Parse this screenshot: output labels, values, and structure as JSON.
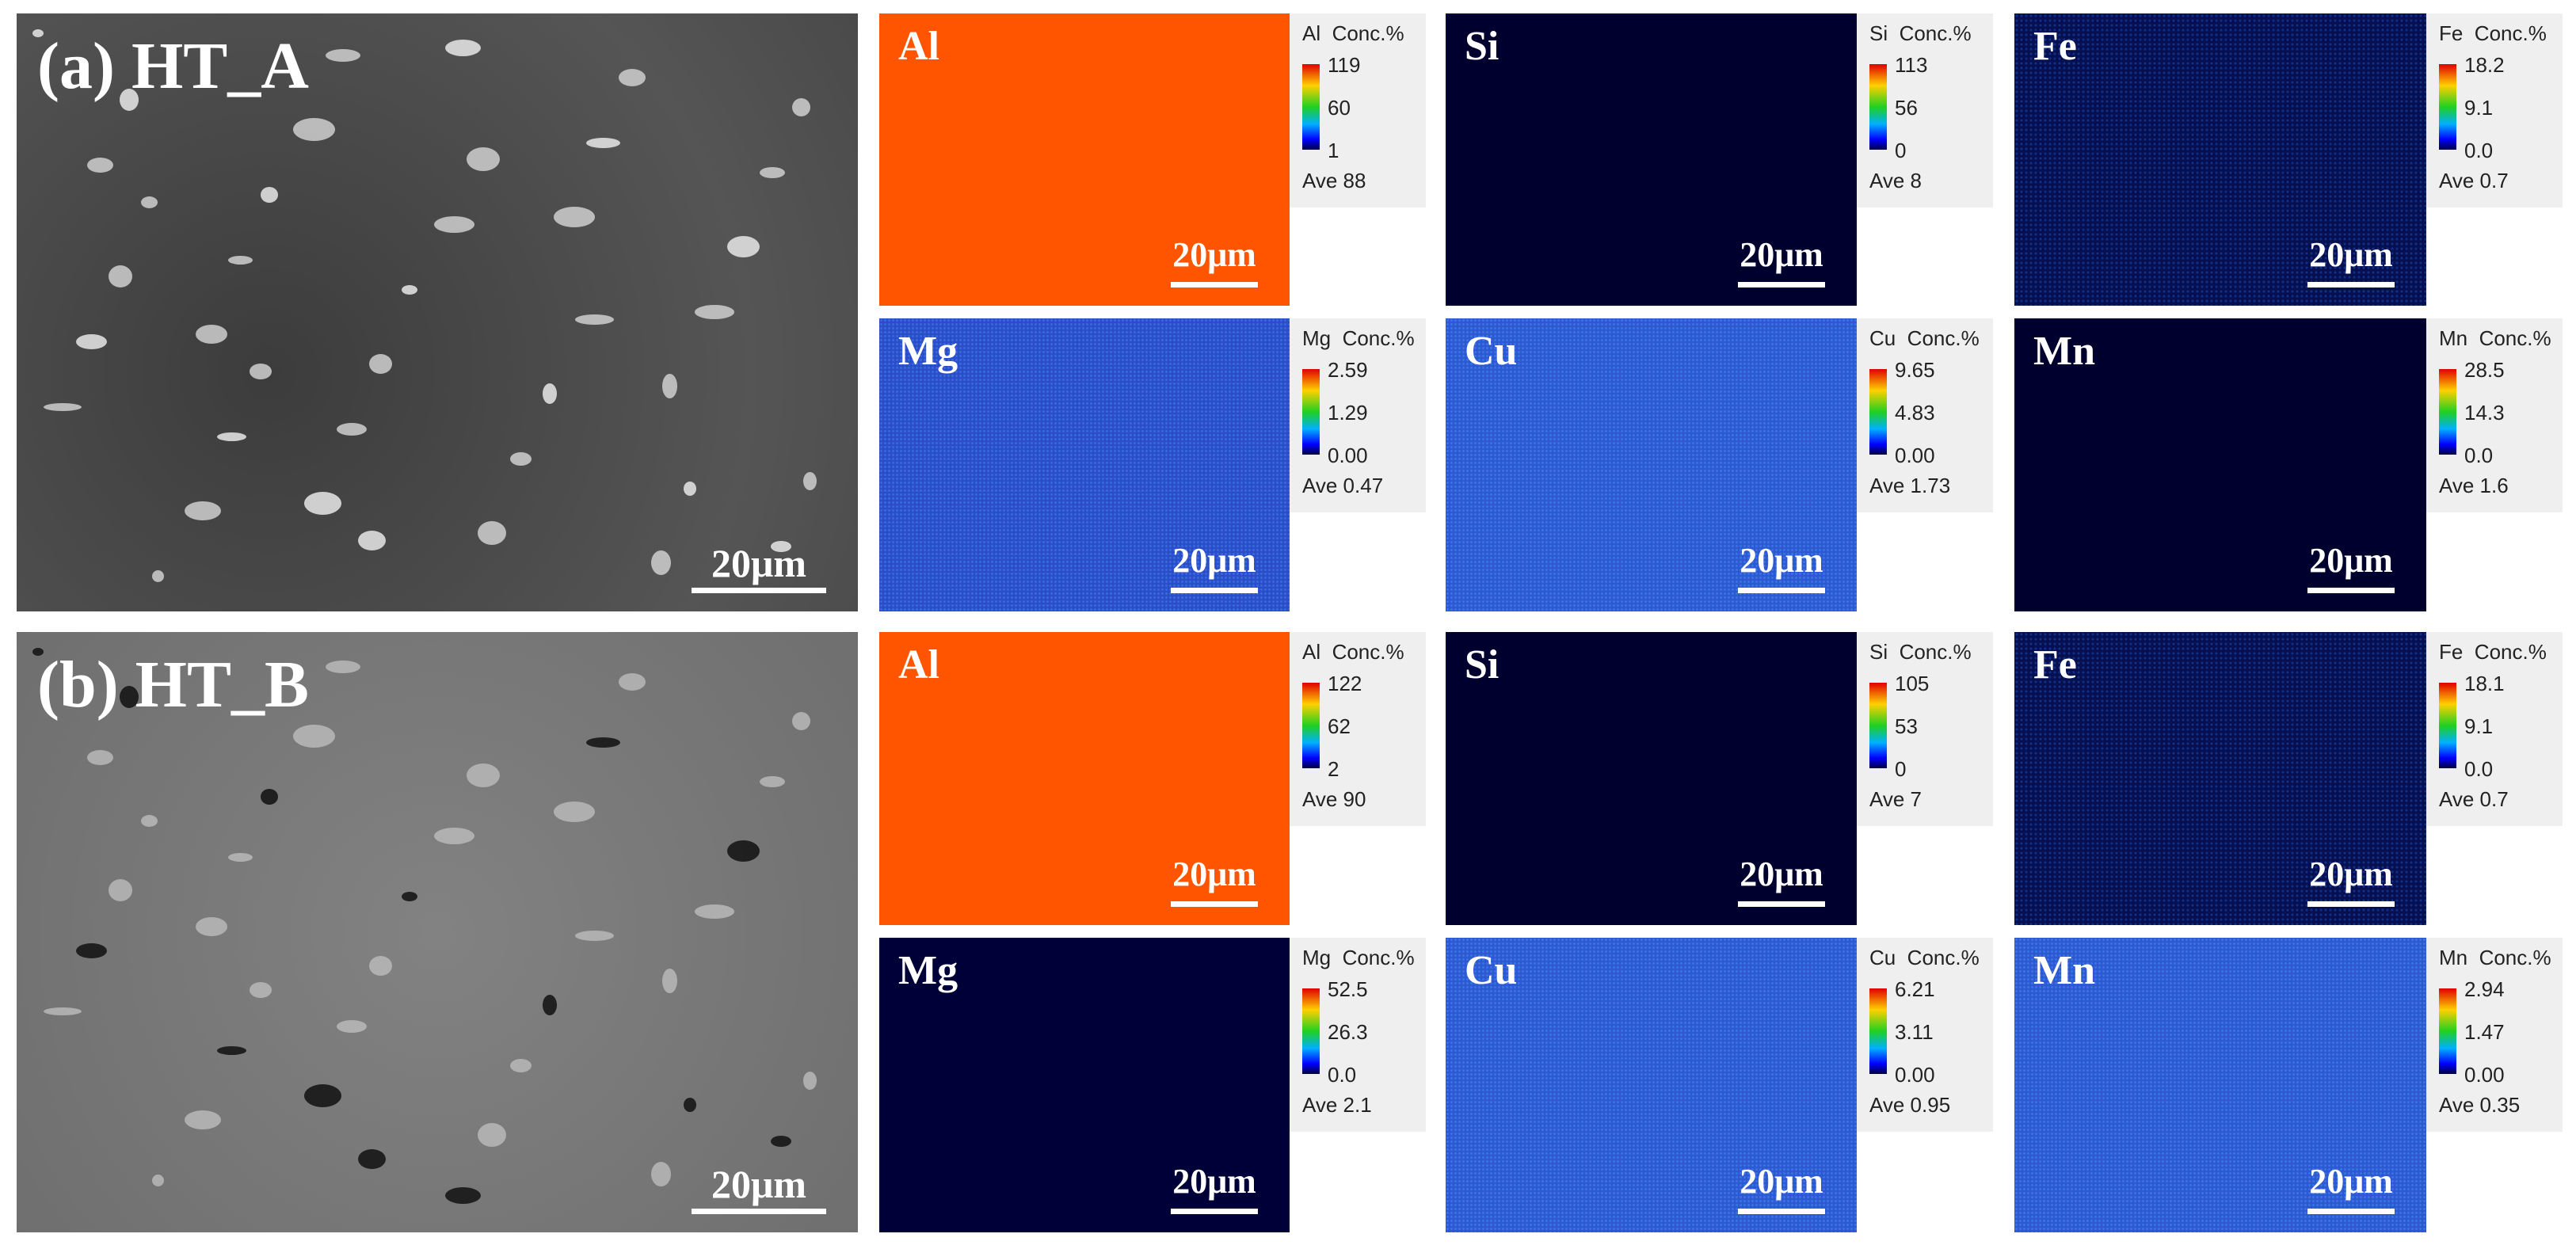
{
  "panels": [
    {
      "label": "(a) HT_A",
      "scale_bar": "20μm",
      "maps": [
        {
          "element": "Al",
          "legend_title": "Al  Conc.%",
          "max": "119",
          "mid": "60",
          "min": "1",
          "average": "Ave 88",
          "scale_bar": "20μm"
        },
        {
          "element": "Si",
          "legend_title": "Si  Conc.%",
          "max": "113",
          "mid": "56",
          "min": "0",
          "average": "Ave 8",
          "scale_bar": "20μm"
        },
        {
          "element": "Fe",
          "legend_title": "Fe  Conc.%",
          "max": "18.2",
          "mid": "9.1",
          "min": "0.0",
          "average": "Ave 0.7",
          "scale_bar": "20μm"
        },
        {
          "element": "Mg",
          "legend_title": "Mg  Conc.%",
          "max": "2.59",
          "mid": "1.29",
          "min": "0.00",
          "average": "Ave 0.47",
          "scale_bar": "20μm"
        },
        {
          "element": "Cu",
          "legend_title": "Cu  Conc.%",
          "max": "9.65",
          "mid": "4.83",
          "min": "0.00",
          "average": "Ave 1.73",
          "scale_bar": "20μm"
        },
        {
          "element": "Mn",
          "legend_title": "Mn  Conc.%",
          "max": "28.5",
          "mid": "14.3",
          "min": "0.0",
          "average": "Ave 1.6",
          "scale_bar": "20μm"
        }
      ]
    },
    {
      "label": "(b) HT_B",
      "scale_bar": "20μm",
      "maps": [
        {
          "element": "Al",
          "legend_title": "Al  Conc.%",
          "max": "122",
          "mid": "62",
          "min": "2",
          "average": "Ave 90",
          "scale_bar": "20μm"
        },
        {
          "element": "Si",
          "legend_title": "Si  Conc.%",
          "max": "105",
          "mid": "53",
          "min": "0",
          "average": "Ave 7",
          "scale_bar": "20μm"
        },
        {
          "element": "Fe",
          "legend_title": "Fe  Conc.%",
          "max": "18.1",
          "mid": "9.1",
          "min": "0.0",
          "average": "Ave 0.7",
          "scale_bar": "20μm"
        },
        {
          "element": "Mg",
          "legend_title": "Mg  Conc.%",
          "max": "52.5",
          "mid": "26.3",
          "min": "0.0",
          "average": "Ave 2.1",
          "scale_bar": "20μm"
        },
        {
          "element": "Cu",
          "legend_title": "Cu  Conc.%",
          "max": "6.21",
          "mid": "3.11",
          "min": "0.00",
          "average": "Ave 0.95",
          "scale_bar": "20μm"
        },
        {
          "element": "Mn",
          "legend_title": "Mn  Conc.%",
          "max": "2.94",
          "mid": "1.47",
          "min": "0.00",
          "average": "Ave 0.35",
          "scale_bar": "20μm"
        }
      ]
    }
  ]
}
